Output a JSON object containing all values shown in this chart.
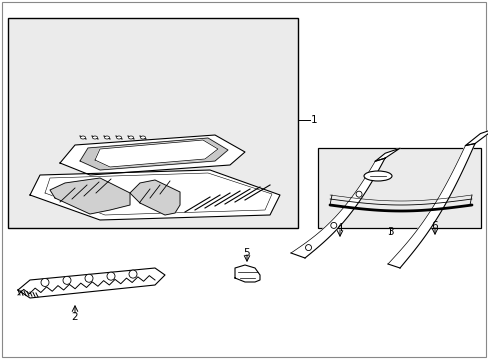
{
  "background_color": "#ffffff",
  "line_color": "#000000",
  "box_bg": "#ebebeb",
  "fig_width": 4.89,
  "fig_height": 3.6,
  "dpi": 100
}
